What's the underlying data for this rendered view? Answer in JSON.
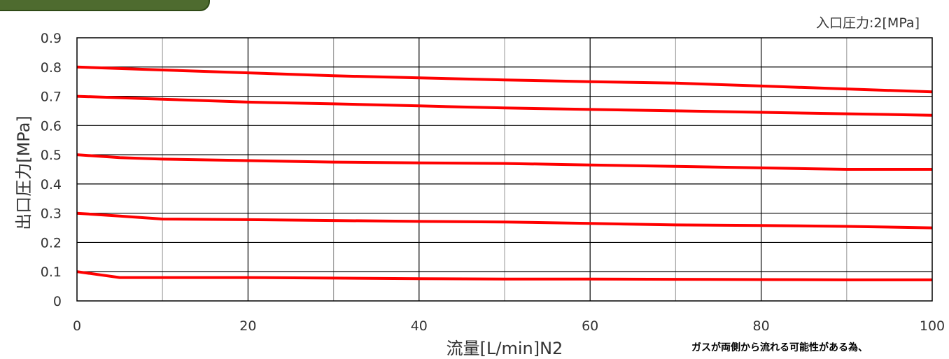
{
  "header": {
    "inlet_pressure_note": "入口圧力:2[MPa]"
  },
  "footnote": "ガスが両側から流れる可能性がある為、",
  "chart_data": {
    "type": "line",
    "title": "",
    "xlabel": "流量[L/min]N2",
    "ylabel": "出口圧力[MPa]",
    "xlim": [
      0,
      100
    ],
    "ylim": [
      0,
      0.9
    ],
    "x_ticks": [
      0,
      20,
      40,
      60,
      80,
      100
    ],
    "y_ticks": [
      0,
      0.1,
      0.2,
      0.3,
      0.4,
      0.5,
      0.6,
      0.7,
      0.8,
      0.9
    ],
    "y_tick_labels": [
      "0",
      "0.1",
      "0.2",
      "0.3",
      "0.4",
      "0.5",
      "0.6",
      "0.7",
      "0.8",
      "0.9"
    ],
    "grid": true,
    "series_color": "#ff0000",
    "series": [
      {
        "x": [
          0,
          10,
          20,
          30,
          40,
          50,
          60,
          70,
          80,
          90,
          100
        ],
        "values": [
          0.8,
          0.79,
          0.78,
          0.77,
          0.763,
          0.756,
          0.75,
          0.745,
          0.735,
          0.725,
          0.715
        ]
      },
      {
        "x": [
          0,
          10,
          20,
          30,
          40,
          50,
          60,
          70,
          80,
          90,
          100
        ],
        "values": [
          0.7,
          0.69,
          0.68,
          0.674,
          0.667,
          0.66,
          0.655,
          0.65,
          0.645,
          0.64,
          0.635
        ]
      },
      {
        "x": [
          0,
          5,
          10,
          20,
          30,
          40,
          50,
          60,
          70,
          80,
          90,
          100
        ],
        "values": [
          0.5,
          0.49,
          0.485,
          0.48,
          0.475,
          0.472,
          0.47,
          0.465,
          0.46,
          0.455,
          0.45,
          0.45
        ]
      },
      {
        "x": [
          0,
          5,
          10,
          20,
          30,
          40,
          50,
          60,
          70,
          80,
          90,
          100
        ],
        "values": [
          0.3,
          0.29,
          0.28,
          0.278,
          0.275,
          0.272,
          0.27,
          0.265,
          0.26,
          0.258,
          0.255,
          0.25
        ]
      },
      {
        "x": [
          0,
          5,
          10,
          20,
          30,
          40,
          50,
          60,
          70,
          80,
          90,
          100
        ],
        "values": [
          0.1,
          0.08,
          0.08,
          0.08,
          0.078,
          0.076,
          0.075,
          0.075,
          0.074,
          0.073,
          0.072,
          0.072
        ]
      }
    ]
  }
}
